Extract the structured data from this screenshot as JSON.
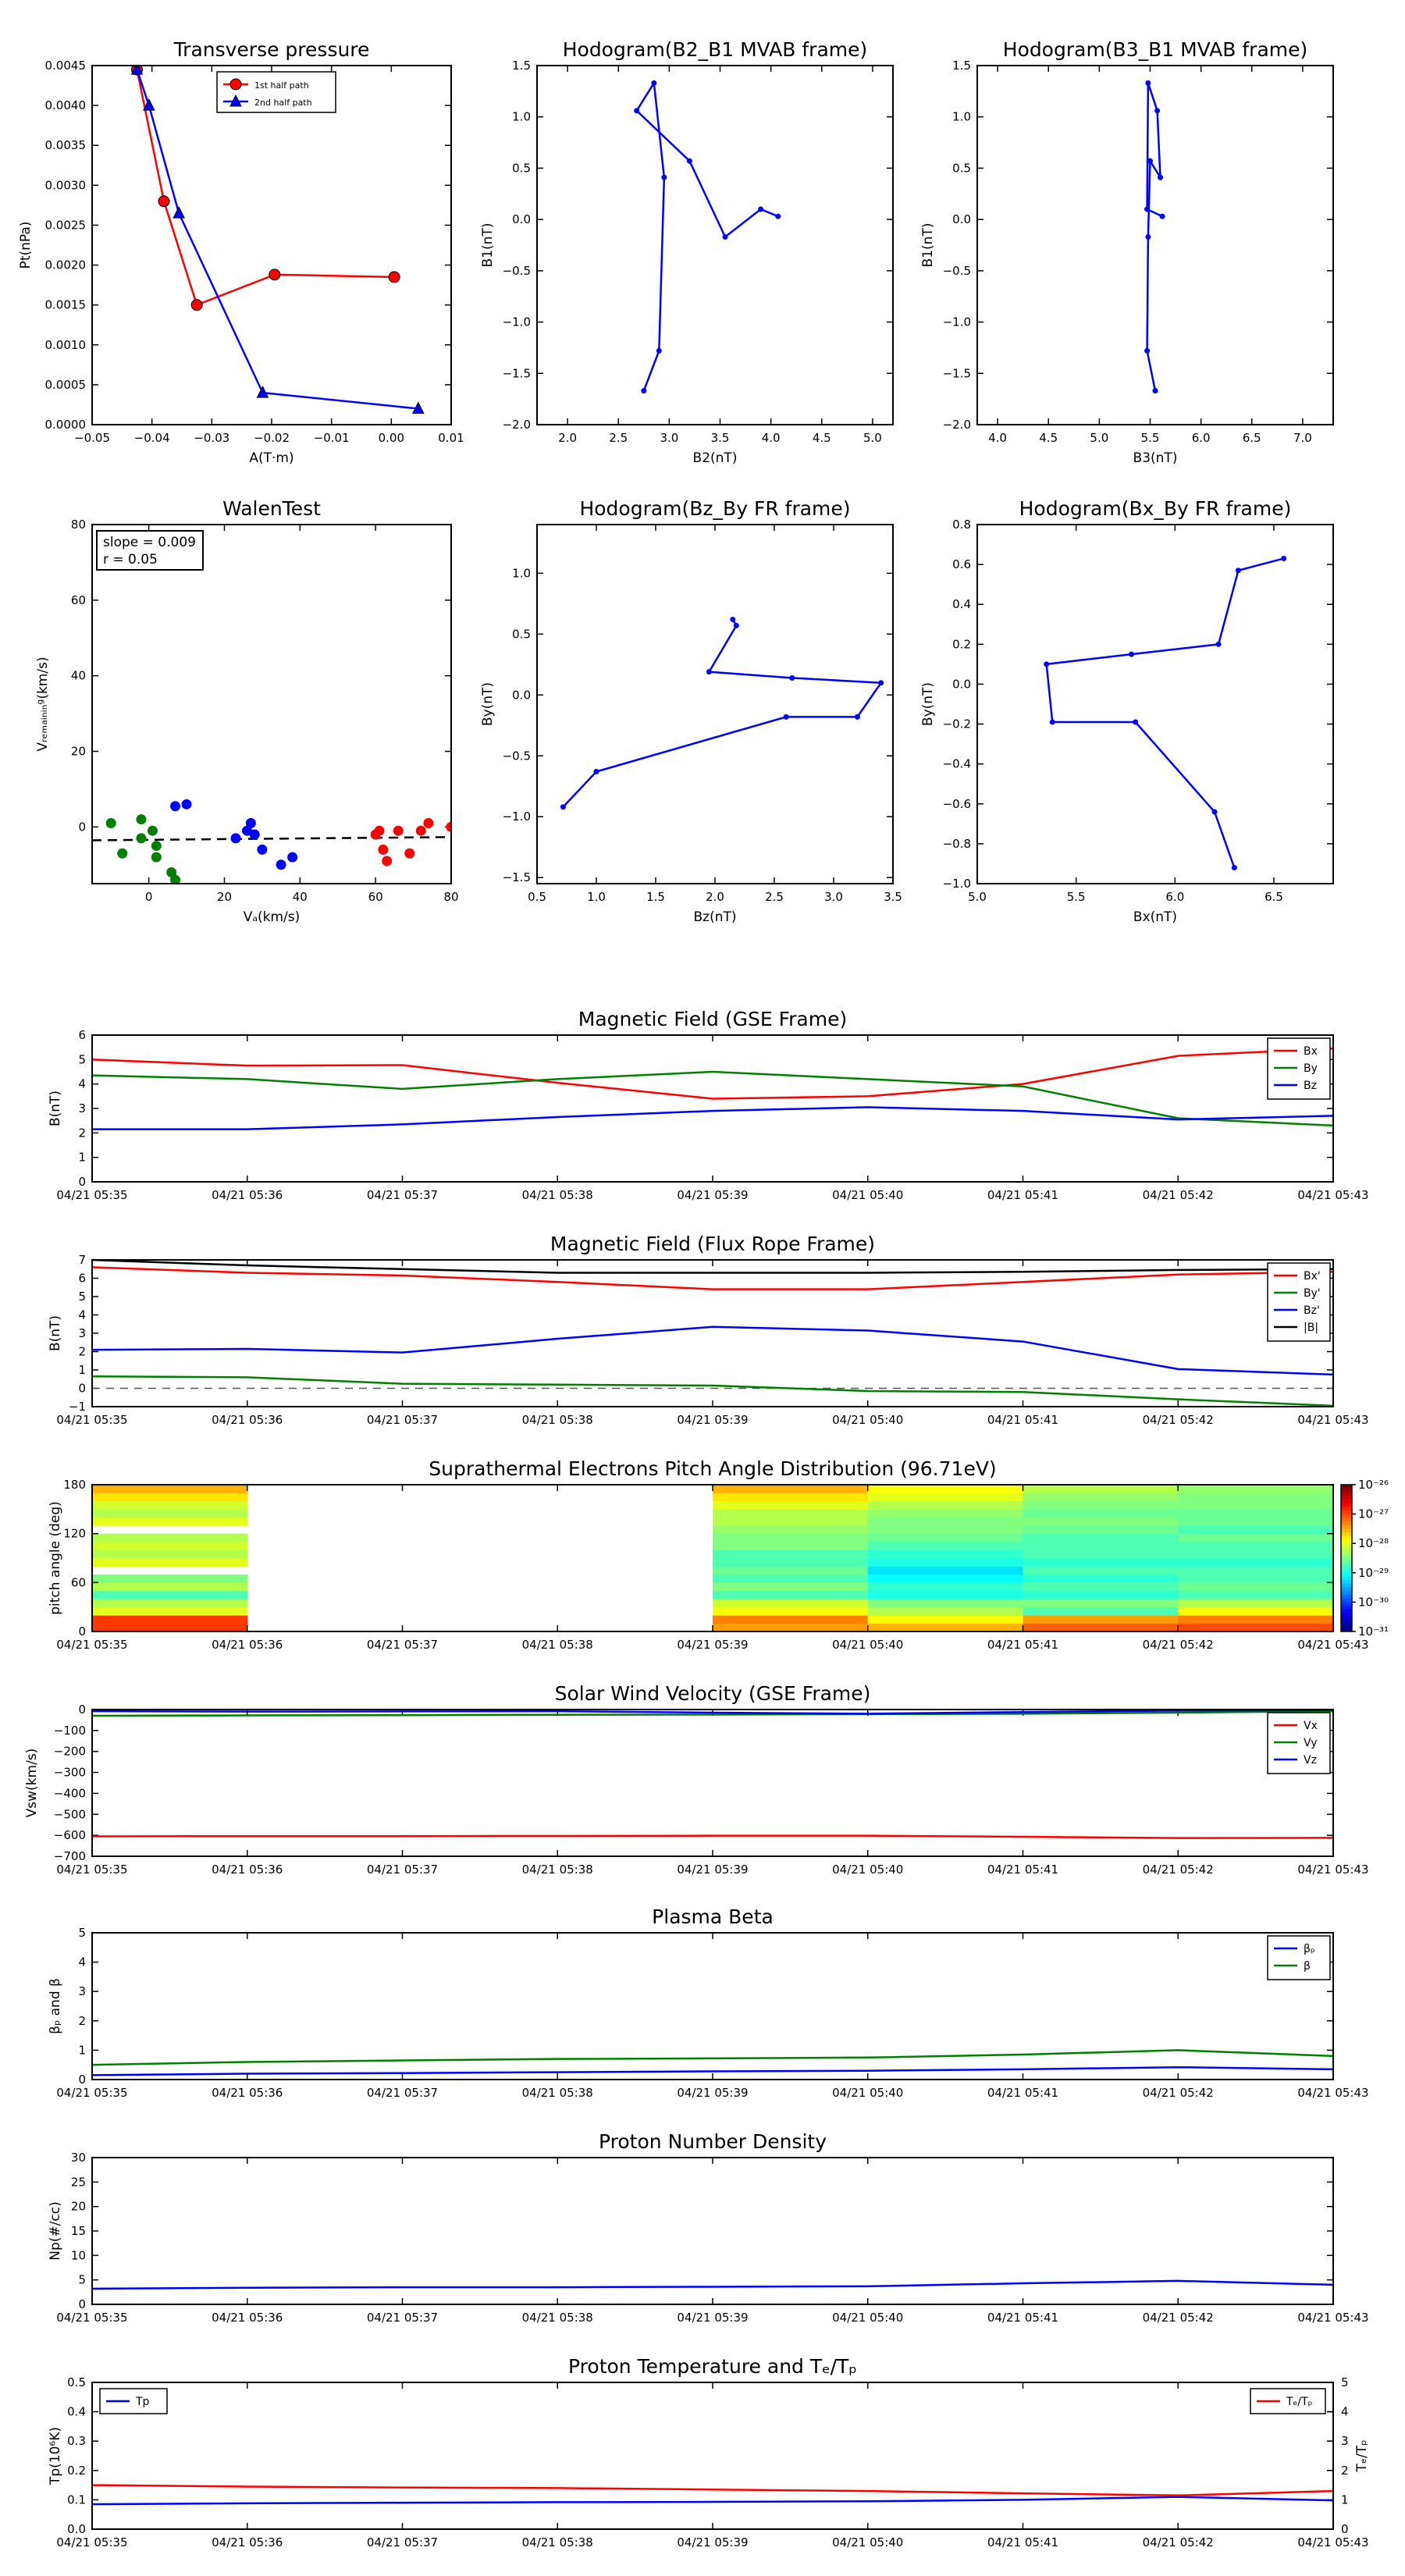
{
  "chart_data": [
    {
      "id": "transverse_pressure",
      "type": "line",
      "title": "Transverse pressure",
      "xlabel": "A(T·m)",
      "ylabel": "Pt(nPa)",
      "xlim": [
        -0.05,
        0.01
      ],
      "ylim": [
        0.0,
        0.0045
      ],
      "xticks": [
        "−0.05",
        "−0.04",
        "−0.03",
        "−0.02",
        "−0.01",
        "0.00",
        "0.01"
      ],
      "yticks": [
        "0.0000",
        "0.0005",
        "0.0010",
        "0.0015",
        "0.0020",
        "0.0025",
        "0.0030",
        "0.0035",
        "0.0040",
        "0.0045"
      ],
      "legend_position": "top-center",
      "series": [
        {
          "name": "1st half path",
          "color": "#ff0000",
          "marker": "circle",
          "x": [
            -0.0425,
            -0.038,
            -0.0325,
            -0.0195,
            0.0005
          ],
          "y": [
            0.00445,
            0.0028,
            0.0015,
            0.00188,
            0.00185
          ]
        },
        {
          "name": "2nd half path",
          "color": "#0000ff",
          "marker": "triangle",
          "x": [
            -0.0425,
            -0.0405,
            -0.0355,
            -0.0215,
            0.0045
          ],
          "y": [
            0.00445,
            0.004,
            0.00265,
            0.0004,
            0.0002
          ]
        }
      ]
    },
    {
      "id": "hodogram_b2_b1",
      "type": "line",
      "title": "Hodogram(B2_B1 MVAB frame)",
      "xlabel": "B2(nT)",
      "ylabel": "B1(nT)",
      "xlim": [
        1.7,
        5.2
      ],
      "ylim": [
        -2.0,
        1.5
      ],
      "xticks": [
        "2.0",
        "2.5",
        "3.0",
        "3.5",
        "4.0",
        "4.5",
        "5.0"
      ],
      "yticks": [
        "−2.0",
        "−1.5",
        "−1.0",
        "−0.5",
        "0.0",
        "0.5",
        "1.0",
        "1.5"
      ],
      "series": [
        {
          "color": "#0000ff",
          "x": [
            2.75,
            2.9,
            2.95,
            2.85,
            2.68,
            3.2,
            3.55,
            3.9,
            4.07
          ],
          "y": [
            -1.67,
            -1.28,
            0.41,
            1.33,
            1.06,
            0.57,
            -0.17,
            0.1,
            0.03
          ]
        }
      ]
    },
    {
      "id": "hodogram_b3_b1",
      "type": "line",
      "title": "Hodogram(B3_B1 MVAB frame)",
      "xlabel": "B3(nT)",
      "ylabel": "B1(nT)",
      "xlim": [
        3.8,
        7.3
      ],
      "ylim": [
        -2.0,
        1.5
      ],
      "xticks": [
        "4.0",
        "4.5",
        "5.0",
        "5.5",
        "6.0",
        "6.5",
        "7.0"
      ],
      "yticks": [
        "−2.0",
        "−1.5",
        "−1.0",
        "−0.5",
        "0.0",
        "0.5",
        "1.0",
        "1.5"
      ],
      "series": [
        {
          "color": "#0000ff",
          "x": [
            5.55,
            5.47,
            5.48,
            5.5,
            5.6,
            5.57,
            5.48,
            5.47,
            5.62
          ],
          "y": [
            -1.67,
            -1.28,
            -0.17,
            0.57,
            0.41,
            1.06,
            1.33,
            0.1,
            0.03
          ]
        }
      ]
    },
    {
      "id": "walen_test",
      "type": "scatter",
      "title": "WalenTest",
      "xlabel": "Vₐ(km/s)",
      "ylabel": "Vᵣₑₘₐᵢₙᵢₙᵍ(km/s)",
      "xlim": [
        -15,
        80
      ],
      "ylim": [
        -15,
        80
      ],
      "xticks": [
        "0",
        "20",
        "40",
        "60",
        "80"
      ],
      "yticks": [
        "0",
        "20",
        "40",
        "60",
        "80"
      ],
      "annotations": [
        "slope = 0.009",
        "r = 0.05"
      ],
      "fit_line": {
        "slope": 0.009,
        "intercept": -3.4
      },
      "series": [
        {
          "color": "#007f00",
          "x": [
            -10,
            -7,
            -2,
            -2,
            1,
            2,
            2,
            6,
            7
          ],
          "y": [
            1,
            -7,
            2,
            -3,
            -1,
            -5,
            -8,
            -12,
            -14
          ]
        },
        {
          "color": "#0000ff",
          "x": [
            7,
            10,
            23,
            26,
            27,
            28,
            30,
            35,
            38
          ],
          "y": [
            5.5,
            6,
            -3,
            -1,
            1,
            -2,
            -6,
            -10,
            -8
          ]
        },
        {
          "color": "#ff0000",
          "x": [
            60,
            61,
            62,
            63,
            66,
            69,
            72,
            74,
            80
          ],
          "y": [
            -2,
            -1,
            -6,
            -9,
            -1,
            -7,
            -1,
            1,
            0
          ]
        }
      ]
    },
    {
      "id": "hodogram_bz_by",
      "type": "line",
      "title": "Hodogram(Bz_By FR frame)",
      "xlabel": "Bz(nT)",
      "ylabel": "By(nT)",
      "xlim": [
        0.5,
        3.5
      ],
      "ylim": [
        -1.55,
        1.4
      ],
      "xticks": [
        "0.5",
        "1.0",
        "1.5",
        "2.0",
        "2.5",
        "3.0",
        "3.5"
      ],
      "yticks": [
        "−1.5",
        "−1.0",
        "−0.5",
        "0.0",
        "0.5",
        "1.0"
      ],
      "series": [
        {
          "color": "#0000ff",
          "x": [
            0.72,
            1.0,
            2.6,
            3.2,
            3.4,
            2.65,
            1.95,
            2.18,
            2.15
          ],
          "y": [
            -0.92,
            -0.63,
            -0.18,
            -0.18,
            0.1,
            0.14,
            0.19,
            0.57,
            0.62
          ]
        }
      ]
    },
    {
      "id": "hodogram_bx_by",
      "type": "line",
      "title": "Hodogram(Bx_By FR frame)",
      "xlabel": "Bx(nT)",
      "ylabel": "By(nT)",
      "xlim": [
        5.0,
        6.8
      ],
      "ylim": [
        -1.0,
        0.8
      ],
      "xticks": [
        "5.0",
        "5.5",
        "6.0",
        "6.5"
      ],
      "yticks": [
        "−1.0",
        "−0.8",
        "−0.6",
        "−0.4",
        "−0.2",
        "0.0",
        "0.2",
        "0.4",
        "0.6",
        "0.8"
      ],
      "series": [
        {
          "color": "#0000ff",
          "x": [
            6.3,
            6.2,
            5.8,
            5.38,
            5.35,
            5.78,
            6.22,
            6.32,
            6.55
          ],
          "y": [
            -0.92,
            -0.64,
            -0.19,
            -0.19,
            0.1,
            0.15,
            0.2,
            0.57,
            0.63
          ]
        }
      ]
    },
    {
      "id": "mag_field_gse",
      "type": "line",
      "title": "Magnetic Field (GSE Frame)",
      "ylabel": "B(nT)",
      "ylim": [
        0,
        6
      ],
      "yticks": [
        "0",
        "1",
        "2",
        "3",
        "4",
        "5",
        "6"
      ],
      "legend_position": "top-right",
      "series": [
        {
          "name": "Bx",
          "color": "#ff0000",
          "values": [
            5.0,
            4.75,
            4.77,
            4.05,
            3.4,
            3.5,
            4.0,
            5.15,
            5.45
          ]
        },
        {
          "name": "By",
          "color": "#007f00",
          "values": [
            4.35,
            4.2,
            3.8,
            4.2,
            4.5,
            4.2,
            3.9,
            2.6,
            2.3
          ]
        },
        {
          "name": "Bz",
          "color": "#0000ff",
          "values": [
            2.15,
            2.15,
            2.35,
            2.65,
            2.9,
            3.05,
            2.9,
            2.55,
            2.7
          ]
        }
      ]
    },
    {
      "id": "mag_field_fr",
      "type": "line",
      "title": "Magnetic Field (Flux Rope Frame)",
      "ylabel": "B(nT)",
      "ylim": [
        -1,
        7
      ],
      "yticks": [
        "−1",
        "0",
        "1",
        "2",
        "3",
        "4",
        "5",
        "6",
        "7"
      ],
      "legend_position": "top-right",
      "zero_line": true,
      "series": [
        {
          "name": "Bx'",
          "color": "#ff0000",
          "values": [
            6.6,
            6.3,
            6.15,
            5.8,
            5.4,
            5.4,
            5.8,
            6.2,
            6.35
          ]
        },
        {
          "name": "By'",
          "color": "#007f00",
          "values": [
            0.65,
            0.6,
            0.25,
            0.2,
            0.15,
            -0.15,
            -0.2,
            -0.6,
            -0.95
          ]
        },
        {
          "name": "Bz'",
          "color": "#0000ff",
          "values": [
            2.1,
            2.15,
            1.95,
            2.7,
            3.35,
            3.15,
            2.55,
            1.05,
            0.75
          ]
        },
        {
          "name": "|B|",
          "color": "#000000",
          "values": [
            7.0,
            6.7,
            6.5,
            6.3,
            6.3,
            6.3,
            6.35,
            6.45,
            6.5
          ]
        }
      ]
    },
    {
      "id": "pad",
      "type": "heatmap",
      "title": "Suprathermal Electrons Pitch Angle Distribution (96.71eV)",
      "ylabel": "pitch angle (deg)",
      "ylim": [
        0,
        180
      ],
      "yticks": [
        "0",
        "60",
        "120",
        "180"
      ],
      "colorbar_ticks": [
        "10⁻²⁶",
        "10⁻²⁷",
        "10⁻²⁸",
        "10⁻²⁹",
        "10⁻³⁰",
        "10⁻³¹"
      ],
      "colorbar_exponents": [
        -26,
        -27,
        -28,
        -29,
        -30,
        -31
      ]
    },
    {
      "id": "sw_velocity",
      "type": "line",
      "title": "Solar Wind Velocity (GSE Frame)",
      "ylabel": "Vsw(km/s)",
      "ylim": [
        -700,
        0
      ],
      "yticks": [
        "−700",
        "−600",
        "−500",
        "−400",
        "−300",
        "−200",
        "−100",
        "0"
      ],
      "legend_position": "top-right",
      "series": [
        {
          "name": "Vx",
          "color": "#ff0000",
          "values": [
            -605,
            -604,
            -604,
            -603,
            -602,
            -602,
            -607,
            -613,
            -612
          ]
        },
        {
          "name": "Vy",
          "color": "#007f00",
          "values": [
            -30,
            -28,
            -27,
            -25,
            -24,
            -22,
            -20,
            -15,
            -8
          ]
        },
        {
          "name": "Vz",
          "color": "#0000ff",
          "values": [
            -8,
            -10,
            -9,
            -8,
            -15,
            -20,
            -12,
            -5,
            -3
          ]
        }
      ]
    },
    {
      "id": "plasma_beta",
      "type": "line",
      "title": "Plasma Beta",
      "ylabel": "βₚ and β",
      "ylim": [
        0,
        5
      ],
      "yticks": [
        "0",
        "1",
        "2",
        "3",
        "4",
        "5"
      ],
      "legend_position": "top-right",
      "series": [
        {
          "name": "βₚ",
          "color": "#0000ff",
          "values": [
            0.15,
            0.2,
            0.22,
            0.25,
            0.28,
            0.3,
            0.35,
            0.42,
            0.35
          ]
        },
        {
          "name": "β",
          "color": "#007f00",
          "values": [
            0.5,
            0.6,
            0.65,
            0.7,
            0.72,
            0.75,
            0.85,
            1.0,
            0.8
          ]
        }
      ]
    },
    {
      "id": "proton_density",
      "type": "line",
      "title": "Proton Number Density",
      "ylabel": "Np(#/cc)",
      "ylim": [
        0,
        30
      ],
      "yticks": [
        "0",
        "5",
        "10",
        "15",
        "20",
        "25",
        "30"
      ],
      "series": [
        {
          "color": "#0000ff",
          "values": [
            3.2,
            3.4,
            3.5,
            3.5,
            3.6,
            3.7,
            4.3,
            4.8,
            4.0
          ]
        }
      ]
    },
    {
      "id": "proton_temp",
      "type": "line",
      "title": "Proton Temperature and Tₑ/Tₚ",
      "ylabel": "Tp(10⁶K)",
      "ylabel_right": "Tₑ/Tₚ",
      "ylim": [
        0,
        0.5
      ],
      "yticks": [
        "0.0",
        "0.1",
        "0.2",
        "0.3",
        "0.4",
        "0.5"
      ],
      "ylim_right": [
        0,
        5
      ],
      "yticks_right": [
        "0",
        "1",
        "2",
        "3",
        "4",
        "5"
      ],
      "series": [
        {
          "name": "Tp",
          "color": "#0000ff",
          "axis": "left",
          "values": [
            0.085,
            0.088,
            0.09,
            0.092,
            0.093,
            0.095,
            0.1,
            0.11,
            0.098
          ]
        },
        {
          "name": "Tₑ/Tₚ",
          "color": "#ff0000",
          "axis": "right",
          "values": [
            1.5,
            1.45,
            1.42,
            1.4,
            1.35,
            1.3,
            1.22,
            1.15,
            1.3
          ]
        }
      ]
    }
  ],
  "time_axis": {
    "ticks": [
      "04/21 05:35",
      "04/21 05:36",
      "04/21 05:37",
      "04/21 05:38",
      "04/21 05:39",
      "04/21 05:40",
      "04/21 05:41",
      "04/21 05:42",
      "04/21 05:43"
    ]
  }
}
